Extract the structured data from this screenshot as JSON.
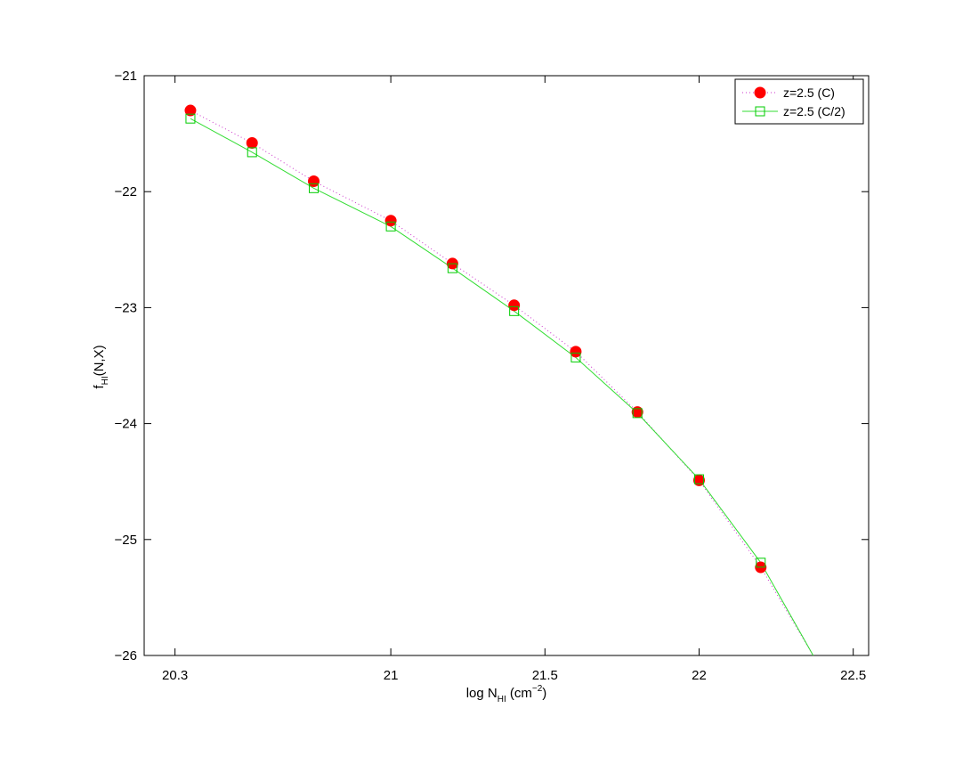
{
  "chart_data": {
    "type": "line",
    "xlabel": {
      "main": "log N",
      "sub": "HI",
      "rest": " (cm",
      "sup": "−2",
      "close": ")"
    },
    "ylabel": {
      "main": "f",
      "sub": "HI",
      "rest": "(N,X)"
    },
    "xlim": [
      20.2,
      22.55
    ],
    "ylim": [
      -26,
      -21
    ],
    "x_ticks": [
      20.3,
      21,
      21.5,
      22,
      22.5
    ],
    "x_tick_labels": [
      "20.3",
      "21",
      "21.5",
      "22",
      "22.5"
    ],
    "y_ticks": [
      -21,
      -22,
      -23,
      -24,
      -25,
      -26
    ],
    "y_tick_labels": [
      "−21",
      "−22",
      "−23",
      "−24",
      "−25",
      "−26"
    ],
    "grid": false,
    "legend_position": "top-right",
    "series": [
      {
        "name": "z=2.5 (C)",
        "color": "#ff0000",
        "line_color": "#cc33cc",
        "line_style": "dotted",
        "marker": "filled-circle",
        "x": [
          20.35,
          20.55,
          20.75,
          21.0,
          21.2,
          21.4,
          21.6,
          21.8,
          22.0,
          22.2
        ],
        "y": [
          -21.3,
          -21.58,
          -21.91,
          -22.25,
          -22.62,
          -22.98,
          -23.38,
          -23.9,
          -24.49,
          -25.24
        ],
        "tail_x": [
          22.37
        ],
        "tail_y": [
          -26.0
        ]
      },
      {
        "name": "z=2.5 (C/2)",
        "color": "#00cc00",
        "line_color": "#33dd33",
        "line_style": "solid",
        "marker": "open-square",
        "x": [
          20.35,
          20.55,
          20.75,
          21.0,
          21.2,
          21.4,
          21.6,
          21.8,
          22.0,
          22.2
        ],
        "y": [
          -21.37,
          -21.66,
          -21.97,
          -22.3,
          -22.66,
          -23.03,
          -23.43,
          -23.91,
          -24.48,
          -25.2
        ],
        "tail_x": [
          22.37
        ],
        "tail_y": [
          -26.0
        ]
      }
    ]
  }
}
